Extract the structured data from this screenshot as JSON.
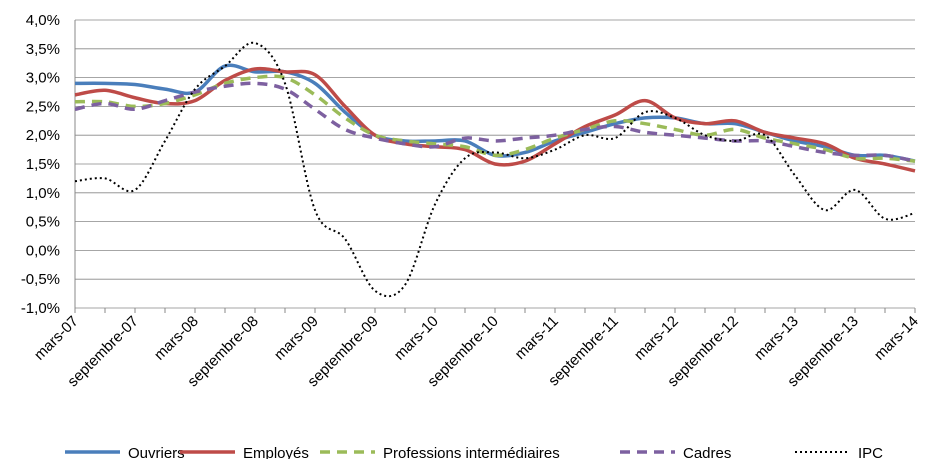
{
  "chart_data": {
    "type": "line",
    "categories": [
      "mars-07",
      null,
      "septembre-07",
      null,
      "mars-08",
      null,
      "septembre-08",
      null,
      "mars-09",
      null,
      "septembre-09",
      null,
      "mars-10",
      null,
      "septembre-10",
      null,
      "mars-11",
      null,
      "septembre-11",
      null,
      "mars-12",
      null,
      "septembre-12",
      null,
      "mars-13",
      null,
      "septembre-13",
      null,
      "mars-14"
    ],
    "series": [
      {
        "name": "Ouvriers",
        "color": "#4a7ebb",
        "dash": "solid",
        "values": [
          2.9,
          2.9,
          2.88,
          2.8,
          2.75,
          3.2,
          3.1,
          3.1,
          2.9,
          2.4,
          2.0,
          1.9,
          1.9,
          1.9,
          1.65,
          1.7,
          1.9,
          2.05,
          2.2,
          2.3,
          2.3,
          2.2,
          2.2,
          2.05,
          1.9,
          1.8,
          1.65,
          1.65,
          1.55
        ]
      },
      {
        "name": "Employés",
        "color": "#be4b48",
        "dash": "solid",
        "values": [
          2.7,
          2.78,
          2.65,
          2.55,
          2.6,
          2.95,
          3.15,
          3.1,
          3.05,
          2.5,
          2.0,
          1.85,
          1.8,
          1.75,
          1.5,
          1.55,
          1.85,
          2.15,
          2.35,
          2.6,
          2.3,
          2.2,
          2.25,
          2.05,
          1.95,
          1.85,
          1.6,
          1.5,
          1.38
        ]
      },
      {
        "name": "Professions intermédiaires",
        "color": "#9bbb59",
        "dash": "dash",
        "values": [
          2.58,
          2.58,
          2.5,
          2.55,
          2.7,
          2.9,
          3.0,
          3.0,
          2.7,
          2.3,
          2.0,
          1.9,
          1.85,
          1.8,
          1.65,
          1.75,
          1.95,
          2.1,
          2.25,
          2.2,
          2.1,
          2.0,
          2.1,
          1.95,
          1.85,
          1.75,
          1.6,
          1.6,
          1.55
        ]
      },
      {
        "name": "Cadres",
        "color": "#7d60a0",
        "dash": "dash",
        "values": [
          2.45,
          2.55,
          2.45,
          2.6,
          2.75,
          2.85,
          2.9,
          2.8,
          2.45,
          2.1,
          1.95,
          1.85,
          1.8,
          1.95,
          1.9,
          1.95,
          2.0,
          2.1,
          2.15,
          2.05,
          2.0,
          1.95,
          1.9,
          1.9,
          1.8,
          1.7,
          1.65,
          1.65,
          1.55
        ]
      },
      {
        "name": "IPC",
        "color": "#000000",
        "dash": "dot",
        "values": [
          1.2,
          1.25,
          1.05,
          1.9,
          2.8,
          3.2,
          3.6,
          2.9,
          0.7,
          0.2,
          -0.7,
          -0.6,
          0.8,
          1.6,
          1.7,
          1.6,
          1.75,
          2.0,
          1.95,
          2.4,
          2.3,
          2.0,
          1.9,
          2.0,
          1.3,
          0.7,
          1.05,
          0.55,
          0.65
        ]
      }
    ],
    "ylim": [
      -1.0,
      4.0
    ],
    "yticks": [
      {
        "value": -1.0,
        "label": "-1,0%"
      },
      {
        "value": -0.5,
        "label": "-0,5%"
      },
      {
        "value": 0.0,
        "label": "0,0%"
      },
      {
        "value": 0.5,
        "label": "0,5%"
      },
      {
        "value": 1.0,
        "label": "1,0%"
      },
      {
        "value": 1.5,
        "label": "1,5%"
      },
      {
        "value": 2.0,
        "label": "2,0%"
      },
      {
        "value": 2.5,
        "label": "2,5%"
      },
      {
        "value": 3.0,
        "label": "3,0%"
      },
      {
        "value": 3.5,
        "label": "3,5%"
      },
      {
        "value": 4.0,
        "label": "4,0%"
      }
    ],
    "grid": true,
    "legend": "bottom"
  }
}
